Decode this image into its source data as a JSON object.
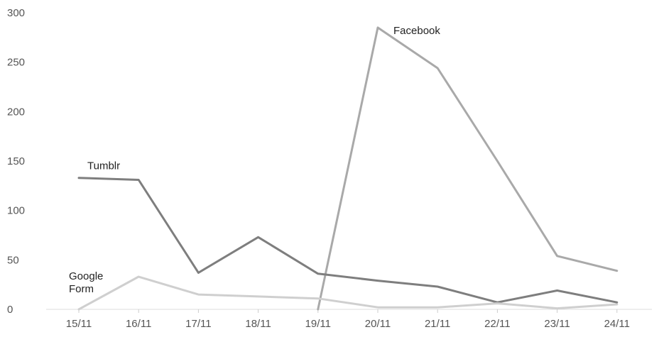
{
  "chart_data": {
    "type": "line",
    "categories": [
      "15/11",
      "16/11",
      "17/11",
      "18/11",
      "19/11",
      "20/11",
      "21/11",
      "22/11",
      "23/11",
      "24/11"
    ],
    "ylim": [
      0,
      300
    ],
    "y_ticks": [
      0,
      50,
      100,
      150,
      200,
      250,
      300
    ],
    "grid": false,
    "legend": "none",
    "title": "",
    "xlabel": "",
    "ylabel": "",
    "series": [
      {
        "name": "Facebook",
        "label_lines": [
          "Facebook"
        ],
        "color": "#a9a9a9",
        "values": [
          null,
          null,
          null,
          null,
          0,
          285,
          244,
          150,
          54,
          39
        ]
      },
      {
        "name": "Tumblr",
        "label_lines": [
          "Tumblr"
        ],
        "color": "#7e7e7e",
        "values": [
          133,
          131,
          37,
          73,
          36,
          29,
          23,
          7,
          19,
          7
        ]
      },
      {
        "name": "Google Form",
        "label_lines": [
          "Google",
          "Form"
        ],
        "color": "#cfcfcf",
        "values": [
          0,
          33,
          15,
          13,
          11,
          2,
          2,
          6,
          1,
          5
        ]
      }
    ]
  }
}
